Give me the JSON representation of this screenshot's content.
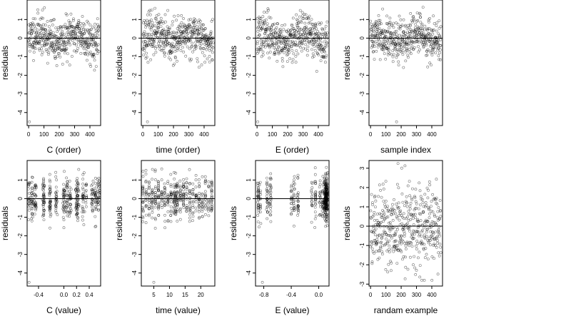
{
  "chart_data": [
    {
      "type": "scatter",
      "xlabel": "C (order)",
      "ylabel": "residuals",
      "xlim": [
        -10,
        470
      ],
      "ylim": [
        -4.7,
        2.05
      ],
      "xticks": [
        {
          "v": 0,
          "label": "0"
        },
        {
          "v": 100,
          "label": "100"
        },
        {
          "v": 200,
          "label": "200"
        },
        {
          "v": 300,
          "label": "300"
        },
        {
          "v": 400,
          "label": "400"
        }
      ],
      "yticks": [
        {
          "v": -4,
          "label": "-4"
        },
        {
          "v": -3,
          "label": "-3"
        },
        {
          "v": -2,
          "label": "-2"
        },
        {
          "v": -1,
          "label": "-1"
        },
        {
          "v": 0,
          "label": "0"
        },
        {
          "v": 1,
          "label": "1"
        }
      ],
      "hline": 0,
      "gen": {
        "mode": "order",
        "seed": 11,
        "n": 460,
        "outlier": [
          {
            "x": 5,
            "y": -4.5
          }
        ]
      }
    },
    {
      "type": "scatter",
      "xlabel": "time (order)",
      "ylabel": "residuals",
      "xlim": [
        -10,
        470
      ],
      "ylim": [
        -4.7,
        2.05
      ],
      "xticks": [
        {
          "v": 0,
          "label": "0"
        },
        {
          "v": 100,
          "label": "100"
        },
        {
          "v": 200,
          "label": "200"
        },
        {
          "v": 300,
          "label": "300"
        },
        {
          "v": 400,
          "label": "400"
        }
      ],
      "yticks": [
        {
          "v": -4,
          "label": "-4"
        },
        {
          "v": -3,
          "label": "-3"
        },
        {
          "v": -2,
          "label": "-2"
        },
        {
          "v": -1,
          "label": "-1"
        },
        {
          "v": 0,
          "label": "0"
        },
        {
          "v": 1,
          "label": "1"
        }
      ],
      "hline": 0,
      "gen": {
        "mode": "order",
        "seed": 23,
        "n": 460,
        "outlier": [
          {
            "x": 30,
            "y": -4.5
          }
        ]
      }
    },
    {
      "type": "scatter",
      "xlabel": "E (order)",
      "ylabel": "residuals",
      "xlim": [
        -10,
        470
      ],
      "ylim": [
        -4.7,
        2.05
      ],
      "xticks": [
        {
          "v": 0,
          "label": "0"
        },
        {
          "v": 100,
          "label": "100"
        },
        {
          "v": 200,
          "label": "200"
        },
        {
          "v": 300,
          "label": "300"
        },
        {
          "v": 400,
          "label": "400"
        }
      ],
      "yticks": [
        {
          "v": -4,
          "label": "-4"
        },
        {
          "v": -3,
          "label": "-3"
        },
        {
          "v": -2,
          "label": "-2"
        },
        {
          "v": -1,
          "label": "-1"
        },
        {
          "v": 0,
          "label": "0"
        },
        {
          "v": 1,
          "label": "1"
        }
      ],
      "hline": 0,
      "gen": {
        "mode": "order",
        "seed": 37,
        "n": 460,
        "outlier": [
          {
            "x": 5,
            "y": -4.5
          }
        ]
      }
    },
    {
      "type": "scatter",
      "xlabel": "sample index",
      "ylabel": "residuals",
      "xlim": [
        -10,
        470
      ],
      "ylim": [
        -4.7,
        2.05
      ],
      "xticks": [
        {
          "v": 0,
          "label": "0"
        },
        {
          "v": 100,
          "label": "100"
        },
        {
          "v": 200,
          "label": "200"
        },
        {
          "v": 300,
          "label": "300"
        },
        {
          "v": 400,
          "label": "400"
        }
      ],
      "yticks": [
        {
          "v": -4,
          "label": "-4"
        },
        {
          "v": -3,
          "label": "-3"
        },
        {
          "v": -2,
          "label": "-2"
        },
        {
          "v": -1,
          "label": "-1"
        },
        {
          "v": 0,
          "label": "0"
        },
        {
          "v": 1,
          "label": "1"
        }
      ],
      "hline": 0,
      "gen": {
        "mode": "order",
        "seed": 41,
        "n": 460,
        "outlier": [
          {
            "x": 170,
            "y": -4.5
          }
        ]
      }
    },
    {
      "type": "scatter",
      "xlabel": "C (value)",
      "ylabel": "residuals",
      "xlim": [
        -0.58,
        0.58
      ],
      "ylim": [
        -4.7,
        2.05
      ],
      "xticks": [
        {
          "v": -0.4,
          "label": "-0.4"
        },
        {
          "v": 0.0,
          "label": "0.0"
        },
        {
          "v": 0.2,
          "label": "0.2"
        },
        {
          "v": 0.4,
          "label": "0.4"
        }
      ],
      "yticks": [
        {
          "v": -4,
          "label": "-4"
        },
        {
          "v": -3,
          "label": "-3"
        },
        {
          "v": -2,
          "label": "-2"
        },
        {
          "v": -1,
          "label": "-1"
        },
        {
          "v": 0,
          "label": "0"
        },
        {
          "v": 1,
          "label": "1"
        }
      ],
      "hline": 0,
      "gen": {
        "mode": "cluster",
        "seed": 53,
        "n": 460,
        "centers": [
          -0.55,
          -0.5,
          -0.45,
          -0.32,
          -0.22,
          -0.12,
          0.0,
          0.05,
          0.1,
          0.2,
          0.22,
          0.3,
          0.35,
          0.45,
          0.5,
          0.55
        ],
        "jitter": 0.008,
        "outlier": [
          {
            "x": -0.55,
            "y": -4.5
          }
        ]
      }
    },
    {
      "type": "scatter",
      "xlabel": "time (value)",
      "ylabel": "residuals",
      "xlim": [
        1,
        24.5
      ],
      "ylim": [
        -4.7,
        2.05
      ],
      "xticks": [
        {
          "v": 5,
          "label": "5"
        },
        {
          "v": 10,
          "label": "10"
        },
        {
          "v": 15,
          "label": "15"
        },
        {
          "v": 20,
          "label": "20"
        }
      ],
      "yticks": [
        {
          "v": -4,
          "label": "-4"
        },
        {
          "v": -3,
          "label": "-3"
        },
        {
          "v": -2,
          "label": "-2"
        },
        {
          "v": -1,
          "label": "-1"
        },
        {
          "v": 0,
          "label": "0"
        },
        {
          "v": 1,
          "label": "1"
        }
      ],
      "hline": 0,
      "gen": {
        "mode": "cluster",
        "seed": 61,
        "n": 460,
        "centers": [
          1.5,
          2.5,
          3.5,
          4.5,
          5.5,
          6.5,
          7.5,
          8.5,
          9.5,
          10.5,
          11.5,
          12,
          12.5,
          13.5,
          14.5,
          15.5,
          16.5,
          17.5,
          18.5,
          19.5,
          20.5,
          21.5,
          22.5,
          23.5
        ],
        "jitter": 0.05,
        "outlier": [
          {
            "x": 5,
            "y": -4.5
          }
        ]
      }
    },
    {
      "type": "scatter",
      "xlabel": "E (value)",
      "ylabel": "residuals",
      "xlim": [
        -0.92,
        0.15
      ],
      "ylim": [
        -4.7,
        2.05
      ],
      "xticks": [
        {
          "v": -0.8,
          "label": "-0.8"
        },
        {
          "v": -0.4,
          "label": "-0.4"
        },
        {
          "v": 0.0,
          "label": "0.0"
        }
      ],
      "yticks": [
        {
          "v": -4,
          "label": "-4"
        },
        {
          "v": -3,
          "label": "-3"
        },
        {
          "v": -2,
          "label": "-2"
        },
        {
          "v": -1,
          "label": "-1"
        },
        {
          "v": 0,
          "label": "0"
        },
        {
          "v": 1,
          "label": "1"
        }
      ],
      "hline": 0,
      "gen": {
        "mode": "cluster",
        "seed": 71,
        "n": 460,
        "centers": [
          -0.88,
          -0.85,
          -0.75,
          -0.7,
          -0.4,
          -0.36,
          -0.3,
          -0.1,
          -0.05,
          0.02,
          0.06,
          0.08,
          0.09,
          0.1,
          0.1,
          0.1,
          0.11,
          0.11,
          0.11,
          0.12,
          0.12,
          0.12
        ],
        "jitter": 0.005,
        "outlier": [
          {
            "x": -0.82,
            "y": -4.5
          }
        ]
      }
    },
    {
      "type": "scatter",
      "xlabel": "randam example",
      "ylabel": "residuals",
      "xlim": [
        -10,
        470
      ],
      "ylim": [
        -3.1,
        3.4
      ],
      "xticks": [
        {
          "v": 0,
          "label": "0"
        },
        {
          "v": 100,
          "label": "100"
        },
        {
          "v": 200,
          "label": "200"
        },
        {
          "v": 300,
          "label": "300"
        },
        {
          "v": 400,
          "label": "400"
        }
      ],
      "yticks": [
        {
          "v": -3,
          "label": "-3"
        },
        {
          "v": -2,
          "label": "-2"
        },
        {
          "v": -1,
          "label": "-1"
        },
        {
          "v": 0,
          "label": "0"
        },
        {
          "v": 1,
          "label": "1"
        },
        {
          "v": 2,
          "label": "2"
        },
        {
          "v": 3,
          "label": "3"
        }
      ],
      "hline": 0,
      "gen": {
        "mode": "random",
        "seed": 89,
        "n": 460,
        "outlier": []
      }
    }
  ]
}
